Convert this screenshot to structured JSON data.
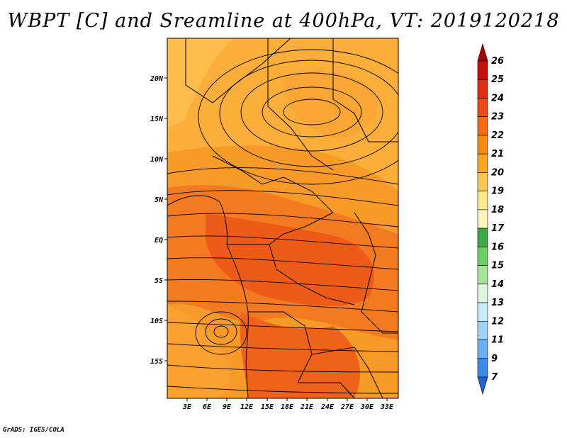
{
  "title": "WBPT [C] and Sreamline at 400hPa, VT: 2019120218",
  "footer": "GrADS: IGES/COLA",
  "map": {
    "lat_labels": [
      "20N",
      "15N",
      "10N",
      "5N",
      "EQ",
      "5S",
      "10S",
      "15S"
    ],
    "lon_labels": [
      "3E",
      "6E",
      "9E",
      "12E",
      "15E",
      "18E",
      "21E",
      "24E",
      "27E",
      "30E",
      "33E"
    ]
  },
  "colorbar": {
    "labels": [
      "26",
      "25",
      "24",
      "23",
      "22",
      "21",
      "20",
      "19",
      "18",
      "17",
      "16",
      "15",
      "14",
      "13",
      "12",
      "11",
      "9",
      "7"
    ],
    "colors": [
      "#a50000",
      "#c80f0f",
      "#e02e12",
      "#ec4a14",
      "#f56a12",
      "#f88a10",
      "#fba623",
      "#fdc356",
      "#fde98f",
      "#fff4bf",
      "#3ca846",
      "#6ccf66",
      "#a6e69c",
      "#def5de",
      "#c9ecfa",
      "#9fd2f4",
      "#6aaef0",
      "#3d8ae8",
      "#1e64d6"
    ]
  },
  "colors": {
    "ocean_orange": "#fbae3a",
    "deep_orange": "#ee5618",
    "mid_orange": "#f58a1c",
    "light_orange": "#fcc456"
  }
}
